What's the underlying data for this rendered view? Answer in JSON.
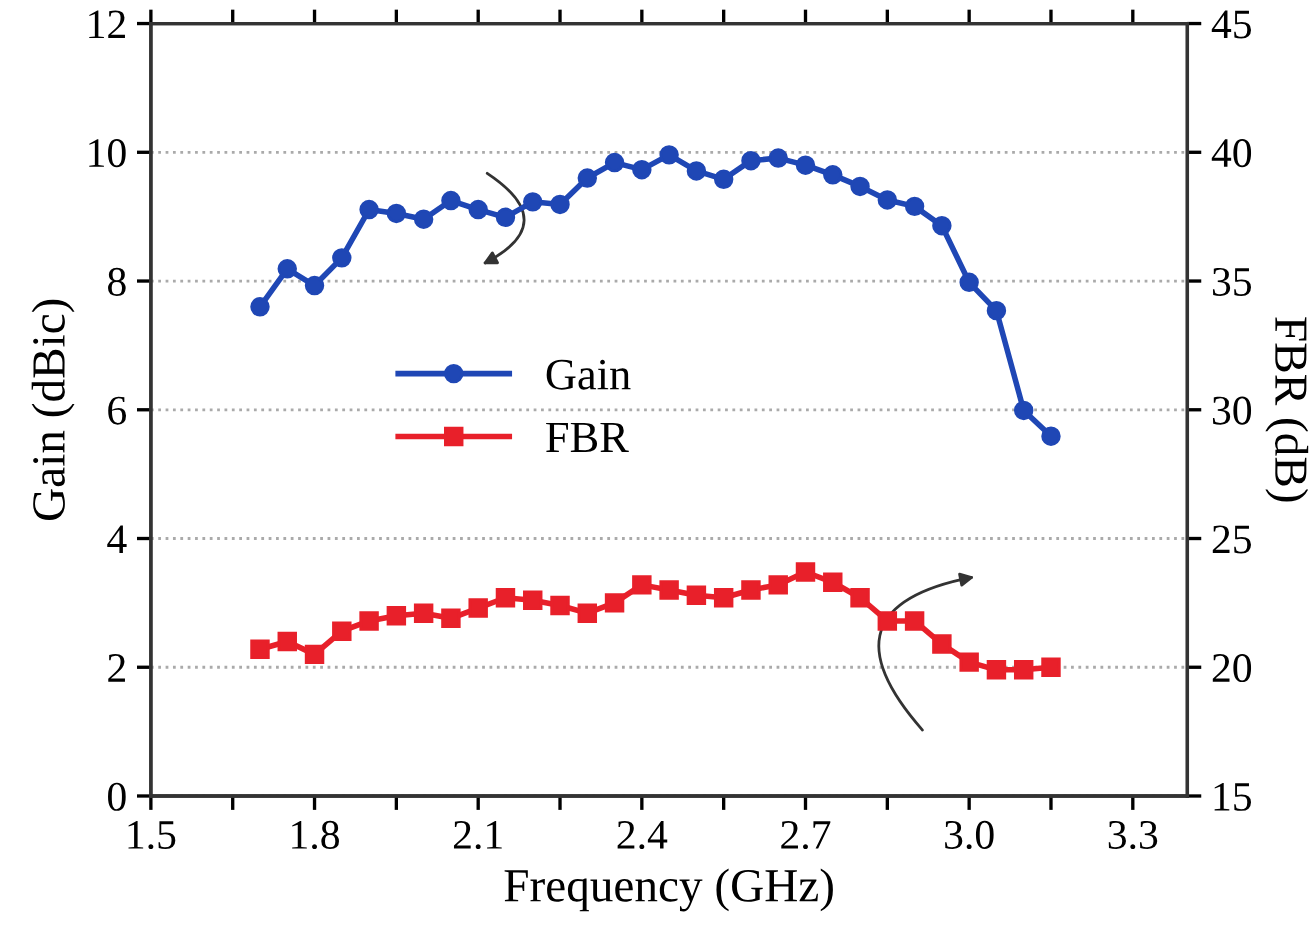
{
  "chart_data": {
    "type": "line",
    "xlabel": "Frequency (GHz)",
    "ylabel": "Gain (dBic)",
    "y2label": "FBR (dB)",
    "x": [
      1.7,
      1.75,
      1.8,
      1.85,
      1.9,
      1.95,
      2.0,
      2.05,
      2.1,
      2.15,
      2.2,
      2.25,
      2.3,
      2.35,
      2.4,
      2.45,
      2.5,
      2.55,
      2.6,
      2.65,
      2.7,
      2.75,
      2.8,
      2.85,
      2.9,
      2.95,
      3.0,
      3.05,
      3.1,
      3.15
    ],
    "series": [
      {
        "name": "Gain",
        "color": "#1f47b5",
        "marker": "circle",
        "values": [
          7.6,
          8.19,
          7.93,
          8.36,
          9.11,
          9.05,
          8.96,
          9.25,
          9.11,
          8.99,
          9.23,
          9.19,
          9.6,
          9.84,
          9.73,
          9.96,
          9.71,
          9.58,
          9.87,
          9.91,
          9.8,
          9.65,
          9.47,
          9.26,
          9.16,
          8.86,
          7.98,
          7.54,
          5.99,
          5.59
        ]
      },
      {
        "name": "FBR",
        "color": "#e8202a",
        "marker": "square",
        "axis": "y2",
        "values": [
          20.7,
          21.0,
          20.5,
          21.4,
          21.8,
          22.0,
          22.1,
          21.9,
          22.3,
          22.7,
          22.6,
          22.4,
          22.1,
          22.5,
          23.2,
          23.0,
          22.8,
          22.7,
          23.0,
          23.2,
          23.7,
          23.3,
          22.7,
          21.8,
          21.8,
          20.9,
          20.2,
          19.9,
          19.9,
          20.0
        ]
      }
    ],
    "xlim": [
      1.5,
      3.4
    ],
    "xticks": [
      1.5,
      {
        "value": 1.65,
        "label": null
      },
      1.8,
      {
        "value": 1.95,
        "label": null
      },
      2.1,
      {
        "value": 2.25,
        "label": null
      },
      2.4,
      {
        "value": 2.55,
        "label": null
      },
      2.7,
      {
        "value": 2.85,
        "label": null
      },
      {
        "value": 3.0,
        "label": "3.0"
      },
      {
        "value": 3.15,
        "label": null
      },
      3.3
    ],
    "ylim": [
      0,
      12
    ],
    "yticks": [
      0,
      2,
      4,
      6,
      8,
      10,
      12
    ],
    "y2lim": [
      15,
      45
    ],
    "y2ticks": [
      15,
      20,
      25,
      30,
      35,
      40,
      45
    ],
    "grid": "y",
    "legend": "center left",
    "line_style": "solid"
  }
}
